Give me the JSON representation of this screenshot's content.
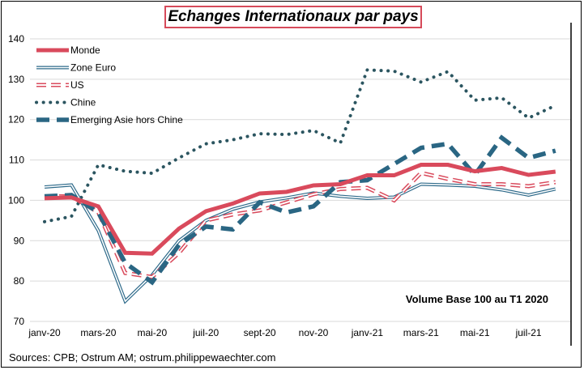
{
  "chart_data": {
    "type": "line",
    "title": "Echanges Internationaux par pays",
    "annotation": "Volume Base 100 au T1 2020",
    "source": "Sources: CPB; Ostrum AM; ostrum.philippewaechter.com",
    "xlabel": "",
    "ylabel": "",
    "ylim": [
      70,
      140
    ],
    "yticks": [
      70,
      80,
      90,
      100,
      110,
      120,
      130,
      140
    ],
    "x": [
      "janv-20",
      "févr-20",
      "mars-20",
      "avr-20",
      "mai-20",
      "juin-20",
      "juil-20",
      "août-20",
      "sept-20",
      "oct-20",
      "nov-20",
      "déc-20",
      "janv-21",
      "févr-21",
      "mars-21",
      "avr-21",
      "mai-21",
      "juin-21",
      "juil-21",
      "août-21"
    ],
    "xtick_labels": [
      "janv-20",
      "mars-20",
      "mai-20",
      "juil-20",
      "sept-20",
      "nov-20",
      "janv-21",
      "mars-21",
      "mai-21",
      "juil-21"
    ],
    "grid": true,
    "legend_placement": "top-left",
    "series": [
      {
        "name": "Monde",
        "style": "solid-thick",
        "color": "#d94a5c",
        "values": [
          100.5,
          100.7,
          98.5,
          87,
          86.8,
          93,
          97.3,
          99.2,
          101.7,
          102.1,
          103.7,
          104,
          106.2,
          106.2,
          108.8,
          108.8,
          107.2,
          108,
          106.3,
          107.1
        ]
      },
      {
        "name": "Zone Euro",
        "style": "double",
        "color": "#2e6a8a",
        "values": [
          103.3,
          103.8,
          92.5,
          75,
          81.5,
          90,
          95,
          97.8,
          99.6,
          100.6,
          101.8,
          101,
          100.5,
          100.8,
          104,
          103.8,
          103.5,
          102.6,
          101.3,
          102.8
        ]
      },
      {
        "name": "US",
        "style": "dashed-hollow",
        "color": "#d94a5c",
        "values": [
          101,
          101,
          97,
          82,
          81,
          87,
          95,
          96.5,
          97.5,
          99.5,
          101.5,
          102.8,
          103.1,
          100,
          106.8,
          105.3,
          104,
          104,
          103.5,
          104.5
        ]
      },
      {
        "name": "Chine",
        "style": "dotted",
        "color": "#2b5560",
        "values": [
          94.7,
          96,
          108.8,
          107.2,
          106.7,
          110.5,
          114,
          115,
          116.5,
          116.3,
          117.3,
          114.2,
          132.3,
          132,
          129.3,
          131.9,
          124.8,
          125.4,
          120.4,
          123.5
        ]
      },
      {
        "name": "Emerging Asie hors Chine",
        "style": "dashed-thick",
        "color": "#2a6683",
        "values": [
          101,
          101.3,
          97,
          84.5,
          79.7,
          89,
          93.5,
          92.8,
          99.5,
          97,
          98.5,
          104.5,
          105,
          109,
          113,
          114,
          106.3,
          115.5,
          110.5,
          112.3
        ]
      }
    ]
  }
}
